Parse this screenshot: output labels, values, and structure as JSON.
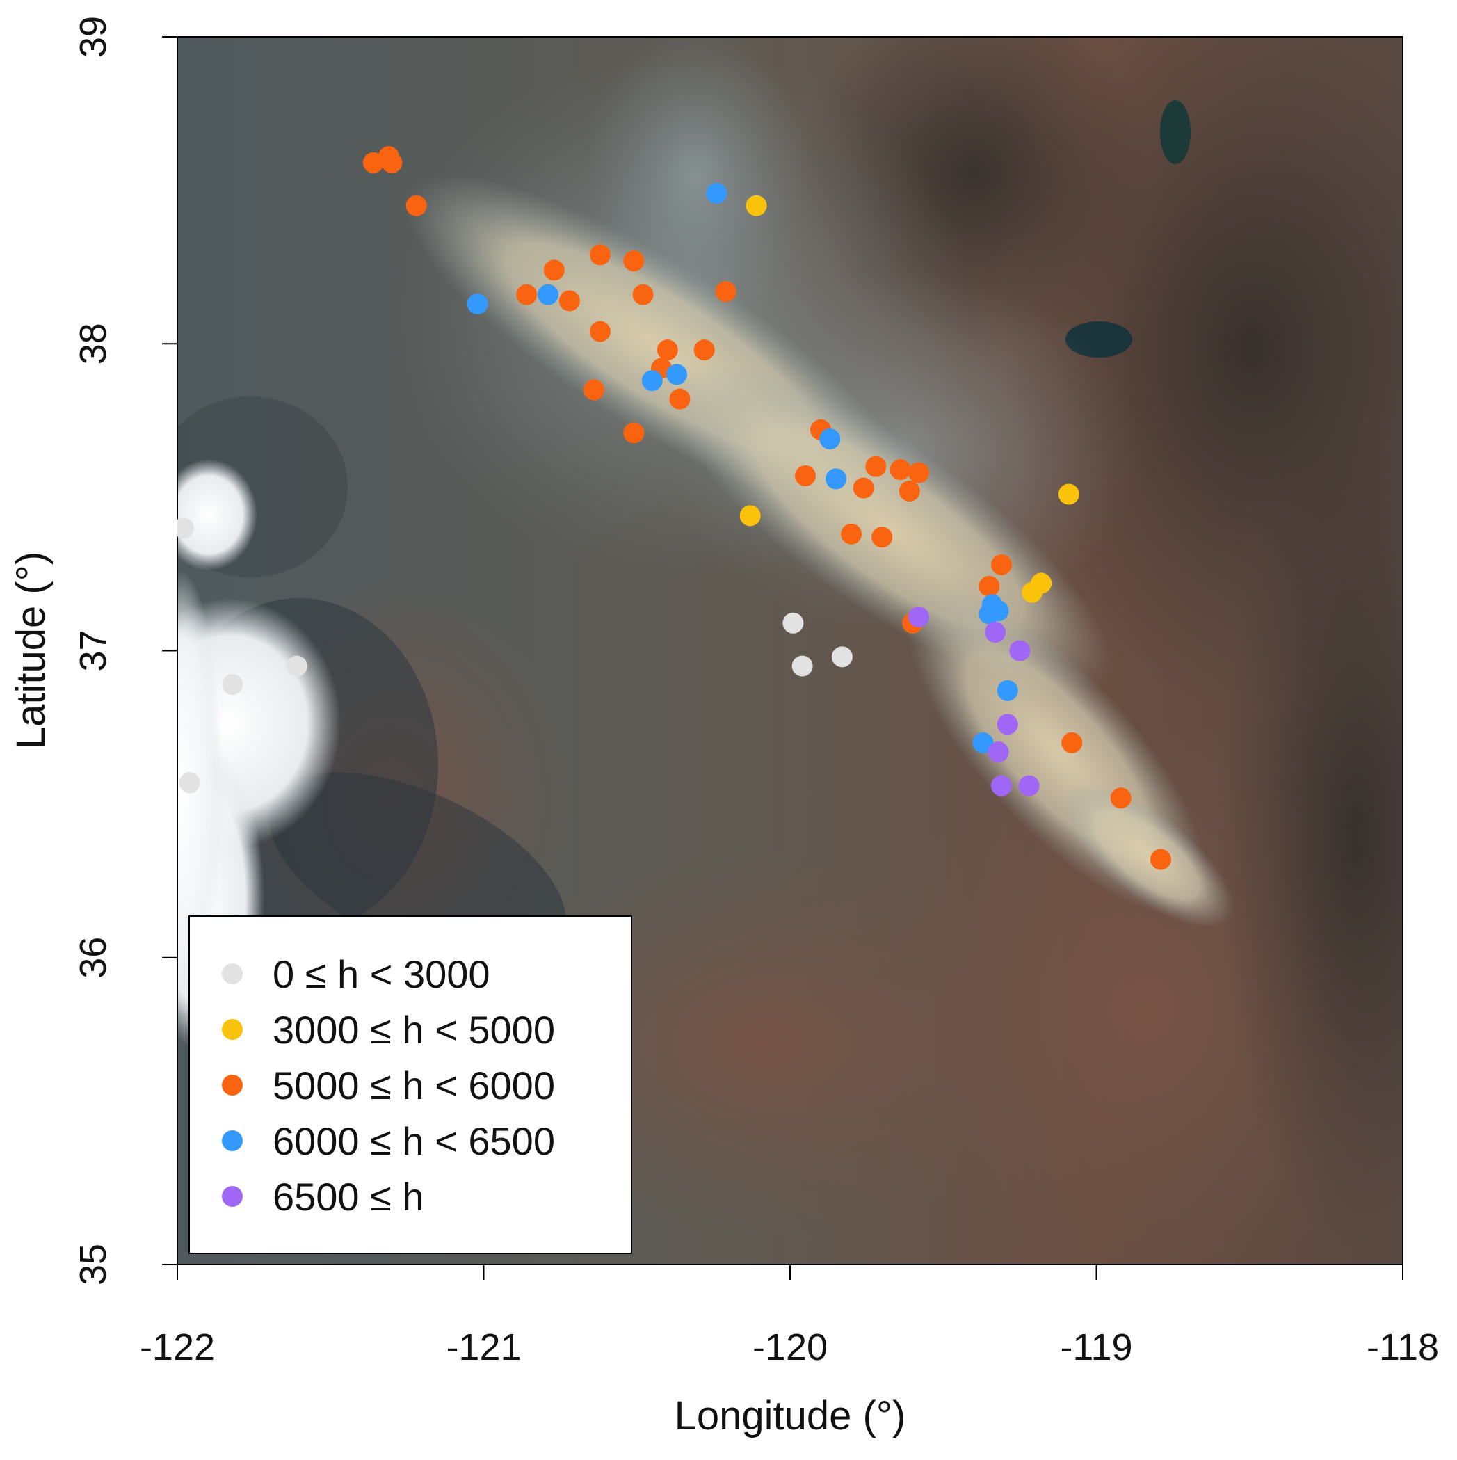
{
  "colors": {
    "h_0_3000": "#e2e2e2",
    "h_3000_5000": "#fac20a",
    "h_5000_6000": "#fa6410",
    "h_6000_6500": "#3399ff",
    "h_6500_plus": "#a066f5"
  },
  "map": {
    "background": "satellite image of central California with a smoke plume",
    "xlabel": "Longitude (°)",
    "ylabel": "Latitude (°)",
    "xlim": [
      -122,
      -118
    ],
    "ylim": [
      35,
      39
    ],
    "xticks": [
      "-122",
      "-121",
      "-120",
      "-119",
      "-118"
    ],
    "yticks": [
      "35",
      "36",
      "37",
      "38",
      "39"
    ]
  },
  "legend": {
    "placement": "bottom-left",
    "entries": [
      {
        "label": "0 ≤ h < 3000",
        "class": "h_0_3000"
      },
      {
        "label": "3000 ≤ h < 5000",
        "class": "h_3000_5000"
      },
      {
        "label": "5000 ≤ h < 6000",
        "class": "h_5000_6000"
      },
      {
        "label": "6000 ≤ h < 6500",
        "class": "h_6000_6500"
      },
      {
        "label": "6500 ≤ h",
        "class": "h_6500_plus"
      }
    ]
  },
  "chart_data": {
    "type": "scatter",
    "xlabel": "Longitude (°)",
    "ylabel": "Latitude (°)",
    "xlim": [
      -122,
      -118
    ],
    "ylim": [
      35,
      39
    ],
    "series": [
      {
        "name": "0 ≤ h < 3000",
        "class": "h_0_3000",
        "points": [
          [
            -121.98,
            37.4
          ],
          [
            -121.82,
            36.89
          ],
          [
            -121.61,
            36.95
          ],
          [
            -121.96,
            36.57
          ],
          [
            -119.99,
            37.09
          ],
          [
            -119.96,
            36.95
          ],
          [
            -119.83,
            36.98
          ]
        ]
      },
      {
        "name": "3000 ≤ h < 5000",
        "class": "h_3000_5000",
        "points": [
          [
            -120.11,
            38.45
          ],
          [
            -120.13,
            37.44
          ],
          [
            -119.09,
            37.51
          ],
          [
            -119.18,
            37.22
          ],
          [
            -119.21,
            37.19
          ]
        ]
      },
      {
        "name": "5000 ≤ h < 6000",
        "class": "h_5000_6000",
        "points": [
          [
            -121.36,
            38.59
          ],
          [
            -121.31,
            38.61
          ],
          [
            -121.3,
            38.59
          ],
          [
            -121.22,
            38.45
          ],
          [
            -120.62,
            38.29
          ],
          [
            -120.51,
            38.27
          ],
          [
            -120.77,
            38.24
          ],
          [
            -120.86,
            38.16
          ],
          [
            -120.72,
            38.14
          ],
          [
            -120.48,
            38.16
          ],
          [
            -120.21,
            38.17
          ],
          [
            -120.62,
            38.04
          ],
          [
            -120.28,
            37.98
          ],
          [
            -120.4,
            37.98
          ],
          [
            -120.42,
            37.92
          ],
          [
            -120.64,
            37.85
          ],
          [
            -120.36,
            37.82
          ],
          [
            -120.51,
            37.71
          ],
          [
            -119.9,
            37.72
          ],
          [
            -119.95,
            37.57
          ],
          [
            -119.72,
            37.6
          ],
          [
            -119.64,
            37.59
          ],
          [
            -119.58,
            37.58
          ],
          [
            -119.76,
            37.53
          ],
          [
            -119.61,
            37.52
          ],
          [
            -119.8,
            37.38
          ],
          [
            -119.7,
            37.37
          ],
          [
            -119.31,
            37.28
          ],
          [
            -119.35,
            37.21
          ],
          [
            -119.6,
            37.09
          ],
          [
            -119.08,
            36.7
          ],
          [
            -118.92,
            36.52
          ],
          [
            -118.79,
            36.32
          ]
        ]
      },
      {
        "name": "6000 ≤ h < 6500",
        "class": "h_6000_6500",
        "points": [
          [
            -120.24,
            38.49
          ],
          [
            -121.02,
            38.13
          ],
          [
            -120.79,
            38.16
          ],
          [
            -120.45,
            37.88
          ],
          [
            -120.37,
            37.9
          ],
          [
            -119.87,
            37.69
          ],
          [
            -119.85,
            37.56
          ],
          [
            -119.34,
            37.15
          ],
          [
            -119.32,
            37.13
          ],
          [
            -119.35,
            37.12
          ],
          [
            -119.29,
            36.87
          ],
          [
            -119.37,
            36.7
          ]
        ]
      },
      {
        "name": "6500 ≤ h",
        "class": "h_6500_plus",
        "points": [
          [
            -119.58,
            37.11
          ],
          [
            -119.33,
            37.06
          ],
          [
            -119.25,
            37.0
          ],
          [
            -119.29,
            36.76
          ],
          [
            -119.32,
            36.67
          ],
          [
            -119.31,
            36.56
          ],
          [
            -119.22,
            36.56
          ]
        ]
      }
    ]
  }
}
